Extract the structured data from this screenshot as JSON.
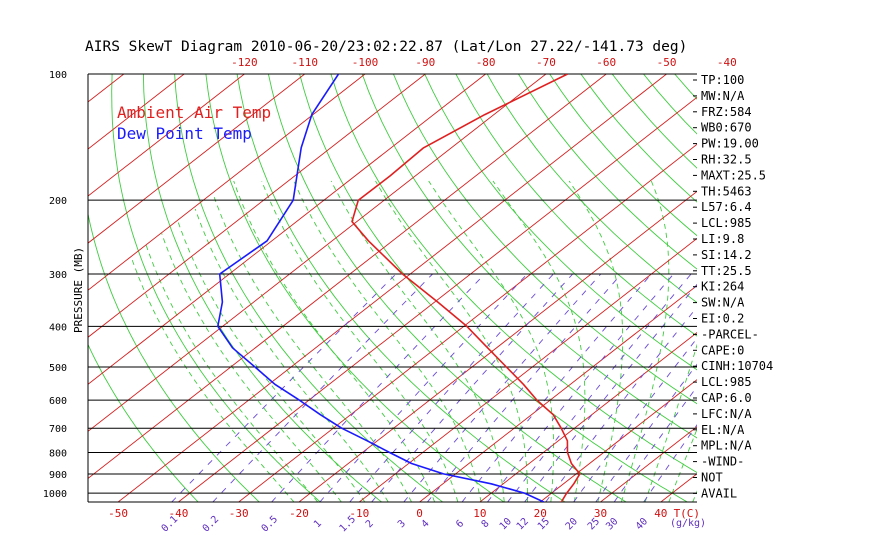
{
  "chart_data": {
    "type": "line",
    "title": "AIRS SkewT Diagram 2010-06-20/23:02:22.87 (Lat/Lon 27.22/-141.73 deg)",
    "ylabel": "PRESSURE (MB)",
    "xlabel": "T(C)",
    "mixing_ratio_unit": "(g/kg)",
    "y_scale": "log",
    "ylim": [
      1050,
      100
    ],
    "xlim_bottom": [
      -53,
      46
    ],
    "pressure_ticks": [
      100,
      200,
      300,
      400,
      500,
      600,
      700,
      800,
      900,
      1000
    ],
    "top_temp_ticks": [
      -120,
      -110,
      -100,
      -90,
      -80,
      -70,
      -60,
      -50,
      -40
    ],
    "bottom_temp_ticks": [
      -50,
      -40,
      -30,
      -20,
      -10,
      0,
      10,
      20,
      30,
      40
    ],
    "mixing_ratio_ticks": [
      "0.1",
      "0.2",
      "0.5",
      "1",
      "1.5",
      "2",
      "3",
      "4",
      "6",
      "8",
      "10",
      "12",
      "15",
      "20",
      "25",
      "30",
      "40"
    ],
    "legend": [
      {
        "name": "Ambient Air Temp",
        "color": "#e02020"
      },
      {
        "name": "Dew Point Temp",
        "color": "#1a1aff"
      }
    ],
    "legend_position": "top-left",
    "colors": {
      "isotherm": "#d42020",
      "dry_adiabat": "#3fcc3f",
      "moist_adiabat": "#3fcc3f",
      "mixing_ratio": "#6a4ad8",
      "isobar": "#000000",
      "axis_labels": "#d01010",
      "mixing_ratio_labels": "#6030c0"
    },
    "series": [
      {
        "name": "Ambient Air Temp",
        "points": [
          {
            "p": 1050,
            "t": 23.5
          },
          {
            "p": 1000,
            "t": 22.5
          },
          {
            "p": 950,
            "t": 21.7
          },
          {
            "p": 900,
            "t": 20.6
          },
          {
            "p": 850,
            "t": 17.0
          },
          {
            "p": 800,
            "t": 14.0
          },
          {
            "p": 750,
            "t": 11.5
          },
          {
            "p": 700,
            "t": 7.8
          },
          {
            "p": 650,
            "t": 3.6
          },
          {
            "p": 600,
            "t": -2.2
          },
          {
            "p": 550,
            "t": -7.8
          },
          {
            "p": 500,
            "t": -14.3
          },
          {
            "p": 450,
            "t": -21.5
          },
          {
            "p": 400,
            "t": -29.5
          },
          {
            "p": 350,
            "t": -39.5
          },
          {
            "p": 300,
            "t": -51.3
          },
          {
            "p": 250,
            "t": -64.0
          },
          {
            "p": 225,
            "t": -70.8
          },
          {
            "p": 200,
            "t": -74.3
          },
          {
            "p": 175,
            "t": -74.2
          },
          {
            "p": 150,
            "t": -74.6
          },
          {
            "p": 125,
            "t": -71.5
          },
          {
            "p": 100,
            "t": -66.4
          }
        ]
      },
      {
        "name": "Dew Point Temp",
        "points": [
          {
            "p": 1050,
            "t": 20.6
          },
          {
            "p": 1000,
            "t": 15.5
          },
          {
            "p": 950,
            "t": 8.0
          },
          {
            "p": 900,
            "t": -2.0
          },
          {
            "p": 850,
            "t": -9.5
          },
          {
            "p": 800,
            "t": -15.5
          },
          {
            "p": 750,
            "t": -21.7
          },
          {
            "p": 700,
            "t": -28.6
          },
          {
            "p": 650,
            "t": -35.0
          },
          {
            "p": 600,
            "t": -41.6
          },
          {
            "p": 550,
            "t": -49.0
          },
          {
            "p": 500,
            "t": -56.0
          },
          {
            "p": 450,
            "t": -63.8
          },
          {
            "p": 400,
            "t": -70.8
          },
          {
            "p": 350,
            "t": -75.2
          },
          {
            "p": 300,
            "t": -81.6
          },
          {
            "p": 250,
            "t": -80.8
          },
          {
            "p": 200,
            "t": -85.1
          },
          {
            "p": 150,
            "t": -94.9
          },
          {
            "p": 125,
            "t": -100.2
          },
          {
            "p": 100,
            "t": -104.4
          }
        ]
      }
    ]
  },
  "indices": [
    "TP:100",
    "MW:N/A",
    "FRZ:584",
    "WB0:670",
    "PW:19.00",
    "RH:32.5",
    "MAXT:25.5",
    "TH:5463",
    "L57:6.4",
    "LCL:985",
    "LI:9.8",
    "SI:14.2",
    "TT:25.5",
    "KI:264",
    "SW:N/A",
    "EI:0.2",
    "-PARCEL-",
    "CAPE:0",
    "CINH:10704",
    "LCL:985",
    "CAP:6.0",
    "LFC:N/A",
    "EL:N/A",
    "MPL:N/A",
    "-WIND-",
    "NOT",
    "AVAIL"
  ]
}
